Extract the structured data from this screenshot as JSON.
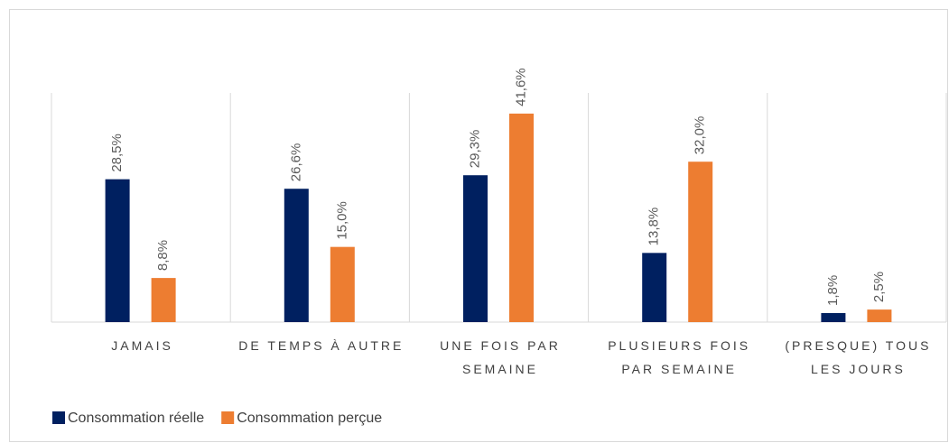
{
  "chart_data": {
    "type": "bar",
    "categories": [
      "JAMAIS",
      "DE TEMPS À AUTRE",
      "UNE FOIS PAR SEMAINE",
      "PLUSIEURS FOIS PAR SEMAINE",
      "(PRESQUE) TOUS LES JOURS"
    ],
    "series": [
      {
        "name": "Consommation réelle",
        "color": "#002060",
        "values": [
          28.5,
          26.6,
          29.3,
          13.8,
          1.8
        ],
        "value_labels": [
          "28,5%",
          "26,6%",
          "29,3%",
          "13,8%",
          "1,8%"
        ]
      },
      {
        "name": "Consommation perçue",
        "color": "#ED7D31",
        "values": [
          8.8,
          15.0,
          41.6,
          32.0,
          2.5
        ],
        "value_labels": [
          "8,8%",
          "15,0%",
          "41,6%",
          "32,0%",
          "2,5%"
        ]
      }
    ],
    "ylim": [
      0,
      45
    ],
    "legend": "bottom-left"
  }
}
